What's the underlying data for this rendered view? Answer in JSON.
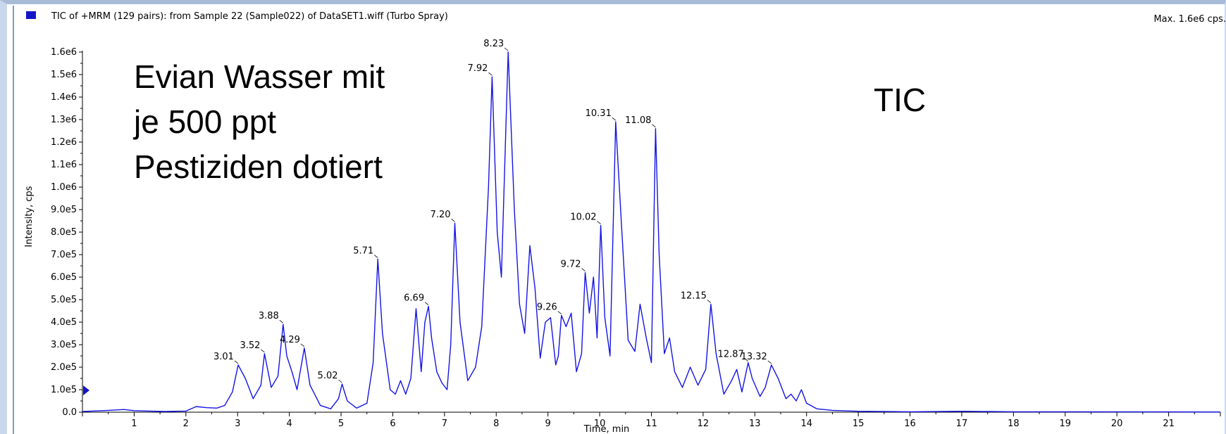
{
  "header": {
    "title": "TIC of +MRM (129 pairs): from Sample 22 (Sample022) of DataSET1.wiff (Turbo Spray)",
    "max_label": "Max. 1.6e6 cps."
  },
  "annotations": {
    "line1": "Evian Wasser mit",
    "line2": "je 500 ppt",
    "line3": "Pestiziden dotiert",
    "tic": "TIC"
  },
  "colors": {
    "trace": "#1414e6",
    "marker": "#1414c8"
  },
  "chart_data": {
    "type": "line",
    "title": "TIC of +MRM (129 pairs): from Sample 22 (Sample022) of DataSET1.wiff (Turbo Spray)",
    "xlabel": "Time, min",
    "ylabel": "Intensity, cps",
    "xlim": [
      0,
      22
    ],
    "ylim": [
      0,
      1600000
    ],
    "x_ticks": [
      1,
      2,
      3,
      4,
      5,
      6,
      7,
      8,
      9,
      10,
      11,
      12,
      13,
      14,
      15,
      16,
      17,
      18,
      19,
      20,
      21
    ],
    "y_ticks": [
      {
        "v": 0,
        "label": "0.0"
      },
      {
        "v": 100000,
        "label": "1.0e5"
      },
      {
        "v": 200000,
        "label": "2.0e5"
      },
      {
        "v": 300000,
        "label": "3.0e5"
      },
      {
        "v": 400000,
        "label": "4.0e5"
      },
      {
        "v": 500000,
        "label": "5.0e5"
      },
      {
        "v": 600000,
        "label": "6.0e5"
      },
      {
        "v": 700000,
        "label": "7.0e5"
      },
      {
        "v": 800000,
        "label": "8.0e5"
      },
      {
        "v": 900000,
        "label": "9.0e5"
      },
      {
        "v": 1000000,
        "label": "1.0e6"
      },
      {
        "v": 1100000,
        "label": "1.1e6"
      },
      {
        "v": 1200000,
        "label": "1.2e6"
      },
      {
        "v": 1300000,
        "label": "1.3e6"
      },
      {
        "v": 1400000,
        "label": "1.4e6"
      },
      {
        "v": 1500000,
        "label": "1.5e6"
      },
      {
        "v": 1600000,
        "label": "1.6e6"
      }
    ],
    "peaks": [
      {
        "x": 3.01,
        "y": 210000,
        "label": "3.01"
      },
      {
        "x": 3.52,
        "y": 260000,
        "label": "3.52"
      },
      {
        "x": 3.88,
        "y": 390000,
        "label": "3.88"
      },
      {
        "x": 4.29,
        "y": 285000,
        "label": "4.29"
      },
      {
        "x": 5.02,
        "y": 125000,
        "label": "5.02"
      },
      {
        "x": 5.71,
        "y": 680000,
        "label": "5.71"
      },
      {
        "x": 6.69,
        "y": 470000,
        "label": "6.69"
      },
      {
        "x": 7.2,
        "y": 840000,
        "label": "7.20"
      },
      {
        "x": 7.92,
        "y": 1490000,
        "label": "7.92"
      },
      {
        "x": 8.23,
        "y": 1600000,
        "label": "8.23"
      },
      {
        "x": 9.26,
        "y": 430000,
        "label": "9.26"
      },
      {
        "x": 9.72,
        "y": 620000,
        "label": "9.72"
      },
      {
        "x": 10.02,
        "y": 830000,
        "label": "10.02"
      },
      {
        "x": 10.31,
        "y": 1290000,
        "label": "10.31"
      },
      {
        "x": 11.08,
        "y": 1260000,
        "label": "11.08"
      },
      {
        "x": 12.15,
        "y": 480000,
        "label": "12.15"
      },
      {
        "x": 12.87,
        "y": 220000,
        "label": "12.87"
      },
      {
        "x": 13.32,
        "y": 210000,
        "label": "13.32"
      }
    ],
    "series": [
      {
        "x": [
          0,
          0.5,
          0.8,
          1.0,
          1.3,
          1.6,
          2.0,
          2.2,
          2.4,
          2.6,
          2.75,
          2.9,
          3.01,
          3.15,
          3.3,
          3.45,
          3.52,
          3.65,
          3.78,
          3.88,
          3.95,
          4.05,
          4.15,
          4.29,
          4.4,
          4.6,
          4.8,
          4.95,
          5.02,
          5.12,
          5.3,
          5.5,
          5.62,
          5.71,
          5.8,
          5.95,
          6.05,
          6.15,
          6.25,
          6.35,
          6.45,
          6.55,
          6.62,
          6.69,
          6.75,
          6.85,
          6.95,
          7.05,
          7.12,
          7.2,
          7.3,
          7.45,
          7.6,
          7.72,
          7.85,
          7.92,
          8.02,
          8.1,
          8.23,
          8.35,
          8.45,
          8.55,
          8.65,
          8.75,
          8.85,
          8.95,
          9.05,
          9.15,
          9.2,
          9.26,
          9.35,
          9.45,
          9.55,
          9.65,
          9.72,
          9.8,
          9.88,
          9.95,
          10.02,
          10.1,
          10.2,
          10.31,
          10.42,
          10.55,
          10.68,
          10.78,
          10.9,
          11.0,
          11.08,
          11.15,
          11.25,
          11.35,
          11.45,
          11.6,
          11.75,
          11.9,
          12.05,
          12.15,
          12.25,
          12.4,
          12.55,
          12.65,
          12.75,
          12.87,
          12.95,
          13.1,
          13.2,
          13.32,
          13.45,
          13.6,
          13.7,
          13.8,
          13.9,
          14.0,
          14.2,
          14.5,
          15.0,
          16.0,
          17.0,
          18.0,
          19.0,
          22.0
        ],
        "y": [
          3000,
          8000,
          12000,
          7000,
          5000,
          3000,
          5000,
          25000,
          20000,
          18000,
          30000,
          90000,
          210000,
          150000,
          60000,
          120000,
          260000,
          110000,
          160000,
          390000,
          250000,
          180000,
          100000,
          285000,
          120000,
          30000,
          15000,
          60000,
          125000,
          50000,
          18000,
          40000,
          220000,
          680000,
          350000,
          100000,
          80000,
          140000,
          80000,
          150000,
          460000,
          180000,
          400000,
          470000,
          330000,
          180000,
          130000,
          100000,
          300000,
          840000,
          400000,
          140000,
          200000,
          380000,
          1000000,
          1490000,
          800000,
          600000,
          1600000,
          900000,
          480000,
          350000,
          740000,
          550000,
          240000,
          400000,
          420000,
          210000,
          250000,
          430000,
          380000,
          440000,
          180000,
          260000,
          620000,
          440000,
          600000,
          330000,
          830000,
          420000,
          250000,
          1290000,
          840000,
          320000,
          270000,
          480000,
          330000,
          220000,
          1260000,
          700000,
          260000,
          330000,
          180000,
          110000,
          200000,
          120000,
          190000,
          480000,
          260000,
          80000,
          140000,
          190000,
          90000,
          220000,
          150000,
          70000,
          110000,
          210000,
          150000,
          60000,
          80000,
          50000,
          100000,
          40000,
          15000,
          8000,
          4000,
          2000,
          4000,
          2000,
          2000,
          1000
        ]
      }
    ]
  }
}
